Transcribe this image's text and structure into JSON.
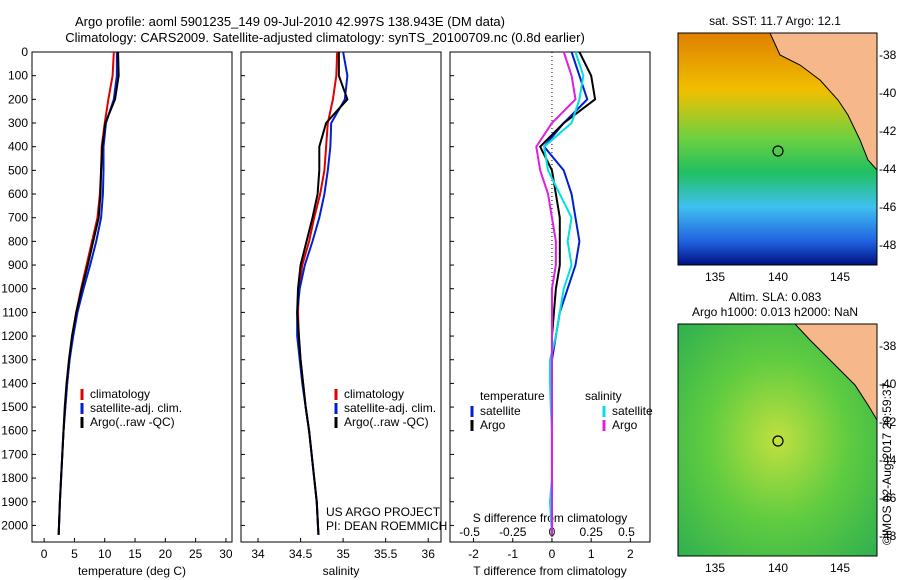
{
  "header": {
    "line1": "Argo profile: aoml 5901235_149 09-Jul-2010 42.997S 138.943E (DM data)",
    "line2": "Climatology: CARS2009. Satellite-adjusted climatology: synTS_20100709.nc (0.8d earlier)"
  },
  "colors": {
    "climatology": "#e00000",
    "satellite": "#0020d0",
    "argo": "#000000",
    "sat_salinity": "#00e0e0",
    "argo_salinity": "#e020e0"
  },
  "chart_data": [
    {
      "type": "line",
      "xlabel": "temperature (deg C)",
      "xlim": [
        -2,
        31
      ],
      "ylim": [
        2070,
        0
      ],
      "xticks": [
        0,
        5,
        10,
        15,
        20,
        25,
        30
      ],
      "yticks": [
        0,
        100,
        200,
        300,
        400,
        500,
        600,
        700,
        800,
        900,
        1000,
        1100,
        1200,
        1300,
        1400,
        1500,
        1600,
        1700,
        1800,
        1900,
        2000
      ],
      "legend": {
        "placement": "lower-center",
        "entries": [
          "climatology",
          "satellite-adj. clim.",
          "Argo(..raw -QC)"
        ]
      },
      "series": [
        {
          "name": "climatology",
          "color": "#e00000",
          "x": [
            11.5,
            11.3,
            10.6,
            10.0,
            9.5,
            9.4,
            9.2,
            8.8,
            7.9,
            7.0,
            6.1,
            5.3,
            4.7,
            4.2,
            3.8,
            3.5,
            3.2,
            3.0,
            2.8,
            2.6,
            2.4
          ],
          "y": [
            0,
            100,
            200,
            300,
            400,
            500,
            600,
            700,
            800,
            900,
            1000,
            1100,
            1200,
            1300,
            1400,
            1500,
            1600,
            1700,
            1800,
            1900,
            2040
          ]
        },
        {
          "name": "satellite-adj. clim.",
          "color": "#0020d0",
          "x": [
            12.0,
            12.0,
            11.5,
            10.2,
            9.8,
            9.8,
            9.7,
            9.4,
            8.6,
            7.6,
            6.5,
            5.5,
            4.8,
            4.2,
            3.8,
            3.5,
            3.2,
            3.0,
            2.8,
            2.6,
            2.4
          ],
          "y": [
            0,
            100,
            200,
            300,
            400,
            500,
            600,
            700,
            800,
            900,
            1000,
            1100,
            1200,
            1300,
            1400,
            1500,
            1600,
            1700,
            1800,
            1900,
            2040
          ]
        },
        {
          "name": "Argo(..raw -QC)",
          "color": "#000000",
          "x": [
            12.2,
            12.3,
            11.7,
            10.1,
            9.6,
            9.4,
            9.3,
            9.0,
            8.1,
            7.2,
            6.2,
            5.3,
            4.6,
            4.1,
            3.7,
            3.4,
            3.2,
            3.0,
            2.8,
            2.6,
            2.4
          ],
          "y": [
            0,
            100,
            200,
            300,
            400,
            500,
            600,
            700,
            800,
            900,
            1000,
            1100,
            1200,
            1300,
            1400,
            1500,
            1600,
            1700,
            1800,
            1900,
            2040
          ]
        }
      ]
    },
    {
      "type": "line",
      "xlabel": "salinity",
      "xlim": [
        33.8,
        36.15
      ],
      "ylim": [
        2070,
        0
      ],
      "xticks": [
        34,
        34.5,
        35,
        35.5,
        36
      ],
      "legend": {
        "placement": "lower-right",
        "entries": [
          "climatology",
          "satellite-adj. clim.",
          "Argo(..raw -QC)"
        ]
      },
      "annotation": [
        "US ARGO PROJECT",
        "PI: DEAN ROEMMICH"
      ],
      "series": [
        {
          "name": "climatology",
          "color": "#e00000",
          "x": [
            34.93,
            34.92,
            34.88,
            34.82,
            34.8,
            34.78,
            34.73,
            34.66,
            34.6,
            34.52,
            34.48,
            34.47,
            34.48,
            34.5,
            34.53,
            34.56,
            34.6,
            34.63,
            34.66,
            34.69,
            34.71
          ],
          "y": [
            0,
            100,
            200,
            300,
            400,
            500,
            600,
            700,
            800,
            900,
            1000,
            1100,
            1200,
            1300,
            1400,
            1500,
            1600,
            1700,
            1800,
            1900,
            2040
          ]
        },
        {
          "name": "satellite-adj. clim.",
          "color": "#0020d0",
          "x": [
            35.0,
            35.05,
            35.02,
            34.86,
            34.85,
            34.82,
            34.78,
            34.72,
            34.64,
            34.55,
            34.49,
            34.46,
            34.46,
            34.49,
            34.52,
            34.56,
            34.6,
            34.63,
            34.66,
            34.69,
            34.71
          ],
          "y": [
            0,
            100,
            200,
            300,
            400,
            500,
            600,
            700,
            800,
            900,
            1000,
            1100,
            1200,
            1300,
            1400,
            1500,
            1600,
            1700,
            1800,
            1900,
            2040
          ]
        },
        {
          "name": "Argo(..raw -QC)",
          "color": "#000000",
          "x": [
            34.95,
            34.95,
            35.05,
            34.8,
            34.72,
            34.72,
            34.7,
            34.64,
            34.57,
            34.5,
            34.47,
            34.46,
            34.48,
            34.5,
            34.53,
            34.56,
            34.6,
            34.63,
            34.66,
            34.69,
            34.71
          ],
          "y": [
            0,
            100,
            200,
            300,
            400,
            500,
            600,
            700,
            800,
            900,
            1000,
            1100,
            1200,
            1300,
            1400,
            1500,
            1600,
            1700,
            1800,
            1900,
            2040
          ]
        }
      ]
    },
    {
      "type": "line",
      "xlabel": "T difference from climatology",
      "xlabel_top": "S difference from climatology",
      "xlim": [
        -2.6,
        2.5
      ],
      "ylim": [
        2070,
        0
      ],
      "xticks": [
        -2,
        -1,
        0,
        1,
        2
      ],
      "xticks_top": [
        "-0.5",
        "-0.25",
        "0",
        "0.25",
        "0.5"
      ],
      "legend": {
        "placement": "lower-center",
        "groups": [
          {
            "title": "temperature",
            "entries": [
              "satellite",
              "Argo"
            ]
          },
          {
            "title": "salinity",
            "entries": [
              "satellite",
              "Argo"
            ]
          }
        ]
      },
      "series": [
        {
          "name": "temperature satellite",
          "color": "#0020d0",
          "x": [
            0.5,
            0.7,
            0.9,
            0.3,
            -0.2,
            0.3,
            0.5,
            0.6,
            0.7,
            0.6,
            0.4,
            0.2,
            0.1,
            0,
            0,
            0,
            0,
            0,
            0,
            0,
            0
          ],
          "y": [
            0,
            100,
            200,
            300,
            400,
            500,
            600,
            700,
            800,
            900,
            1000,
            1100,
            1200,
            1300,
            1400,
            1500,
            1600,
            1700,
            1800,
            1900,
            2040
          ]
        },
        {
          "name": "temperature Argo",
          "color": "#000000",
          "x": [
            0.7,
            1.0,
            1.1,
            0.3,
            -0.3,
            0,
            0.1,
            0.2,
            0.2,
            0.2,
            0.1,
            0.05,
            0,
            0,
            0,
            0,
            0,
            0,
            0,
            0,
            0
          ],
          "y": [
            0,
            100,
            200,
            300,
            400,
            500,
            600,
            700,
            800,
            900,
            1000,
            1100,
            1200,
            1300,
            1400,
            1500,
            1600,
            1700,
            1800,
            1900,
            2040
          ]
        },
        {
          "name": "salinity satellite",
          "color": "#00e0e0",
          "x": [
            0.6,
            0.8,
            0.7,
            0.5,
            -0.2,
            -0.1,
            0.2,
            0.5,
            0.4,
            0.5,
            0.3,
            0.2,
            0.1,
            -0.05,
            -0.05,
            -0.03,
            0,
            0,
            0,
            -0.05,
            0
          ],
          "y": [
            0,
            100,
            200,
            300,
            400,
            500,
            600,
            700,
            800,
            900,
            1000,
            1100,
            1200,
            1300,
            1400,
            1500,
            1600,
            1700,
            1800,
            1900,
            2040
          ]
        },
        {
          "name": "salinity Argo",
          "color": "#e020e0",
          "x": [
            0.3,
            0.5,
            0.6,
            0.0,
            -0.4,
            -0.3,
            -0.1,
            0.0,
            0.1,
            0.1,
            0.0,
            0,
            0,
            0,
            0,
            0,
            0,
            0,
            0,
            0,
            0
          ],
          "y": [
            0,
            100,
            200,
            300,
            400,
            500,
            600,
            700,
            800,
            900,
            1000,
            1100,
            1200,
            1300,
            1400,
            1500,
            1600,
            1700,
            1800,
            1900,
            2040
          ]
        }
      ]
    }
  ],
  "maps": {
    "top": {
      "title": "sat. SST: 11.7  Argo: 12.1",
      "xticks": [
        "135",
        "140",
        "145"
      ],
      "yticks": [
        "-38",
        "-40",
        "-42",
        "-44",
        "-46",
        "-48"
      ]
    },
    "bottom": {
      "title1": "Altim. SLA: 0.083",
      "title2": "Argo h1000: 0.013  h2000: NaN",
      "xticks": [
        "135",
        "140",
        "145"
      ],
      "yticks": [
        "-38",
        "-40",
        "-42",
        "-44",
        "-46",
        "-48"
      ]
    }
  },
  "footer_stamp": "©IMOS 02-Aug-2017 20:59:37"
}
